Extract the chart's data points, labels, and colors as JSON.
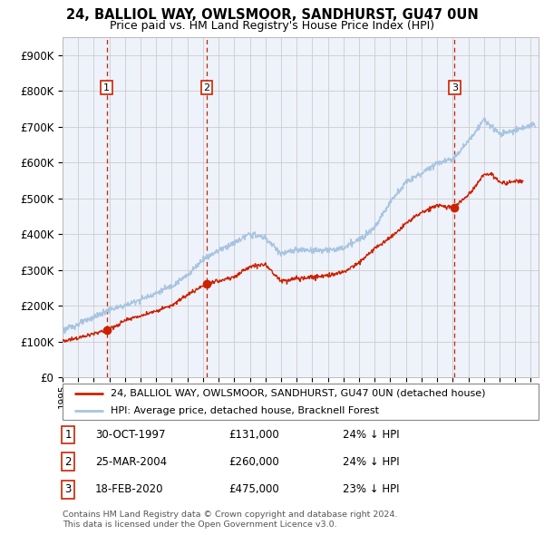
{
  "title1": "24, BALLIOL WAY, OWLSMOOR, SANDHURST, GU47 0UN",
  "title2": "Price paid vs. HM Land Registry's House Price Index (HPI)",
  "ylim": [
    0,
    950000
  ],
  "yticks": [
    0,
    100000,
    200000,
    300000,
    400000,
    500000,
    600000,
    700000,
    800000,
    900000
  ],
  "ytick_labels": [
    "£0",
    "£100K",
    "£200K",
    "£300K",
    "£400K",
    "£500K",
    "£600K",
    "£700K",
    "£800K",
    "£900K"
  ],
  "xlim_start": 1995.0,
  "xlim_end": 2025.5,
  "hpi_color": "#a8c4e0",
  "price_color": "#cc2200",
  "dashed_line_color": "#cc2200",
  "grid_color": "#cccccc",
  "background_color": "#eef2fa",
  "sale_dates": [
    1997.833,
    2004.233,
    2020.125
  ],
  "sale_prices": [
    131000,
    260000,
    475000
  ],
  "sale_labels": [
    "1",
    "2",
    "3"
  ],
  "sale_info": [
    {
      "num": "1",
      "date": "30-OCT-1997",
      "price": "£131,000",
      "hpi": "24% ↓ HPI"
    },
    {
      "num": "2",
      "date": "25-MAR-2004",
      "price": "£260,000",
      "hpi": "24% ↓ HPI"
    },
    {
      "num": "3",
      "date": "18-FEB-2020",
      "price": "£475,000",
      "hpi": "23% ↓ HPI"
    }
  ],
  "legend_line1": "24, BALLIOL WAY, OWLSMOOR, SANDHURST, GU47 0UN (detached house)",
  "legend_line2": "HPI: Average price, detached house, Bracknell Forest",
  "footer1": "Contains HM Land Registry data © Crown copyright and database right 2024.",
  "footer2": "This data is licensed under the Open Government Licence v3.0.",
  "xticks": [
    1995,
    1996,
    1997,
    1998,
    1999,
    2000,
    2001,
    2002,
    2003,
    2004,
    2005,
    2006,
    2007,
    2008,
    2009,
    2010,
    2011,
    2012,
    2013,
    2014,
    2015,
    2016,
    2017,
    2018,
    2019,
    2020,
    2021,
    2022,
    2023,
    2024,
    2025
  ],
  "hpi_anchor_years": [
    1995,
    1996,
    1997,
    1998,
    1999,
    2000,
    2001,
    2002,
    2003,
    2004,
    2005,
    2006,
    2007,
    2008,
    2009,
    2010,
    2011,
    2012,
    2013,
    2014,
    2015,
    2016,
    2017,
    2018,
    2019,
    2020,
    2021,
    2022,
    2023,
    2024,
    2025
  ],
  "hpi_anchor_prices": [
    130000,
    148000,
    168000,
    188000,
    200000,
    218000,
    235000,
    255000,
    285000,
    330000,
    355000,
    375000,
    400000,
    390000,
    345000,
    355000,
    355000,
    355000,
    360000,
    385000,
    420000,
    490000,
    545000,
    570000,
    600000,
    610000,
    660000,
    720000,
    680000,
    690000,
    705000
  ],
  "red_anchor_years": [
    1995,
    1996,
    1997.833,
    1998.5,
    1999,
    2000,
    2001,
    2002,
    2003,
    2004.233,
    2005,
    2006,
    2007,
    2008,
    2008.5,
    2009,
    2010,
    2011,
    2012,
    2013,
    2014,
    2015,
    2016,
    2017,
    2018,
    2019,
    2020.125,
    2021,
    2022,
    2022.5,
    2023,
    2023.5,
    2024,
    2024.5
  ],
  "red_anchor_prices": [
    100000,
    110000,
    131000,
    145000,
    158000,
    172000,
    185000,
    200000,
    230000,
    260000,
    270000,
    280000,
    310000,
    315000,
    290000,
    270000,
    275000,
    280000,
    285000,
    295000,
    320000,
    360000,
    390000,
    430000,
    460000,
    480000,
    475000,
    510000,
    565000,
    570000,
    545000,
    540000,
    550000,
    545000
  ]
}
